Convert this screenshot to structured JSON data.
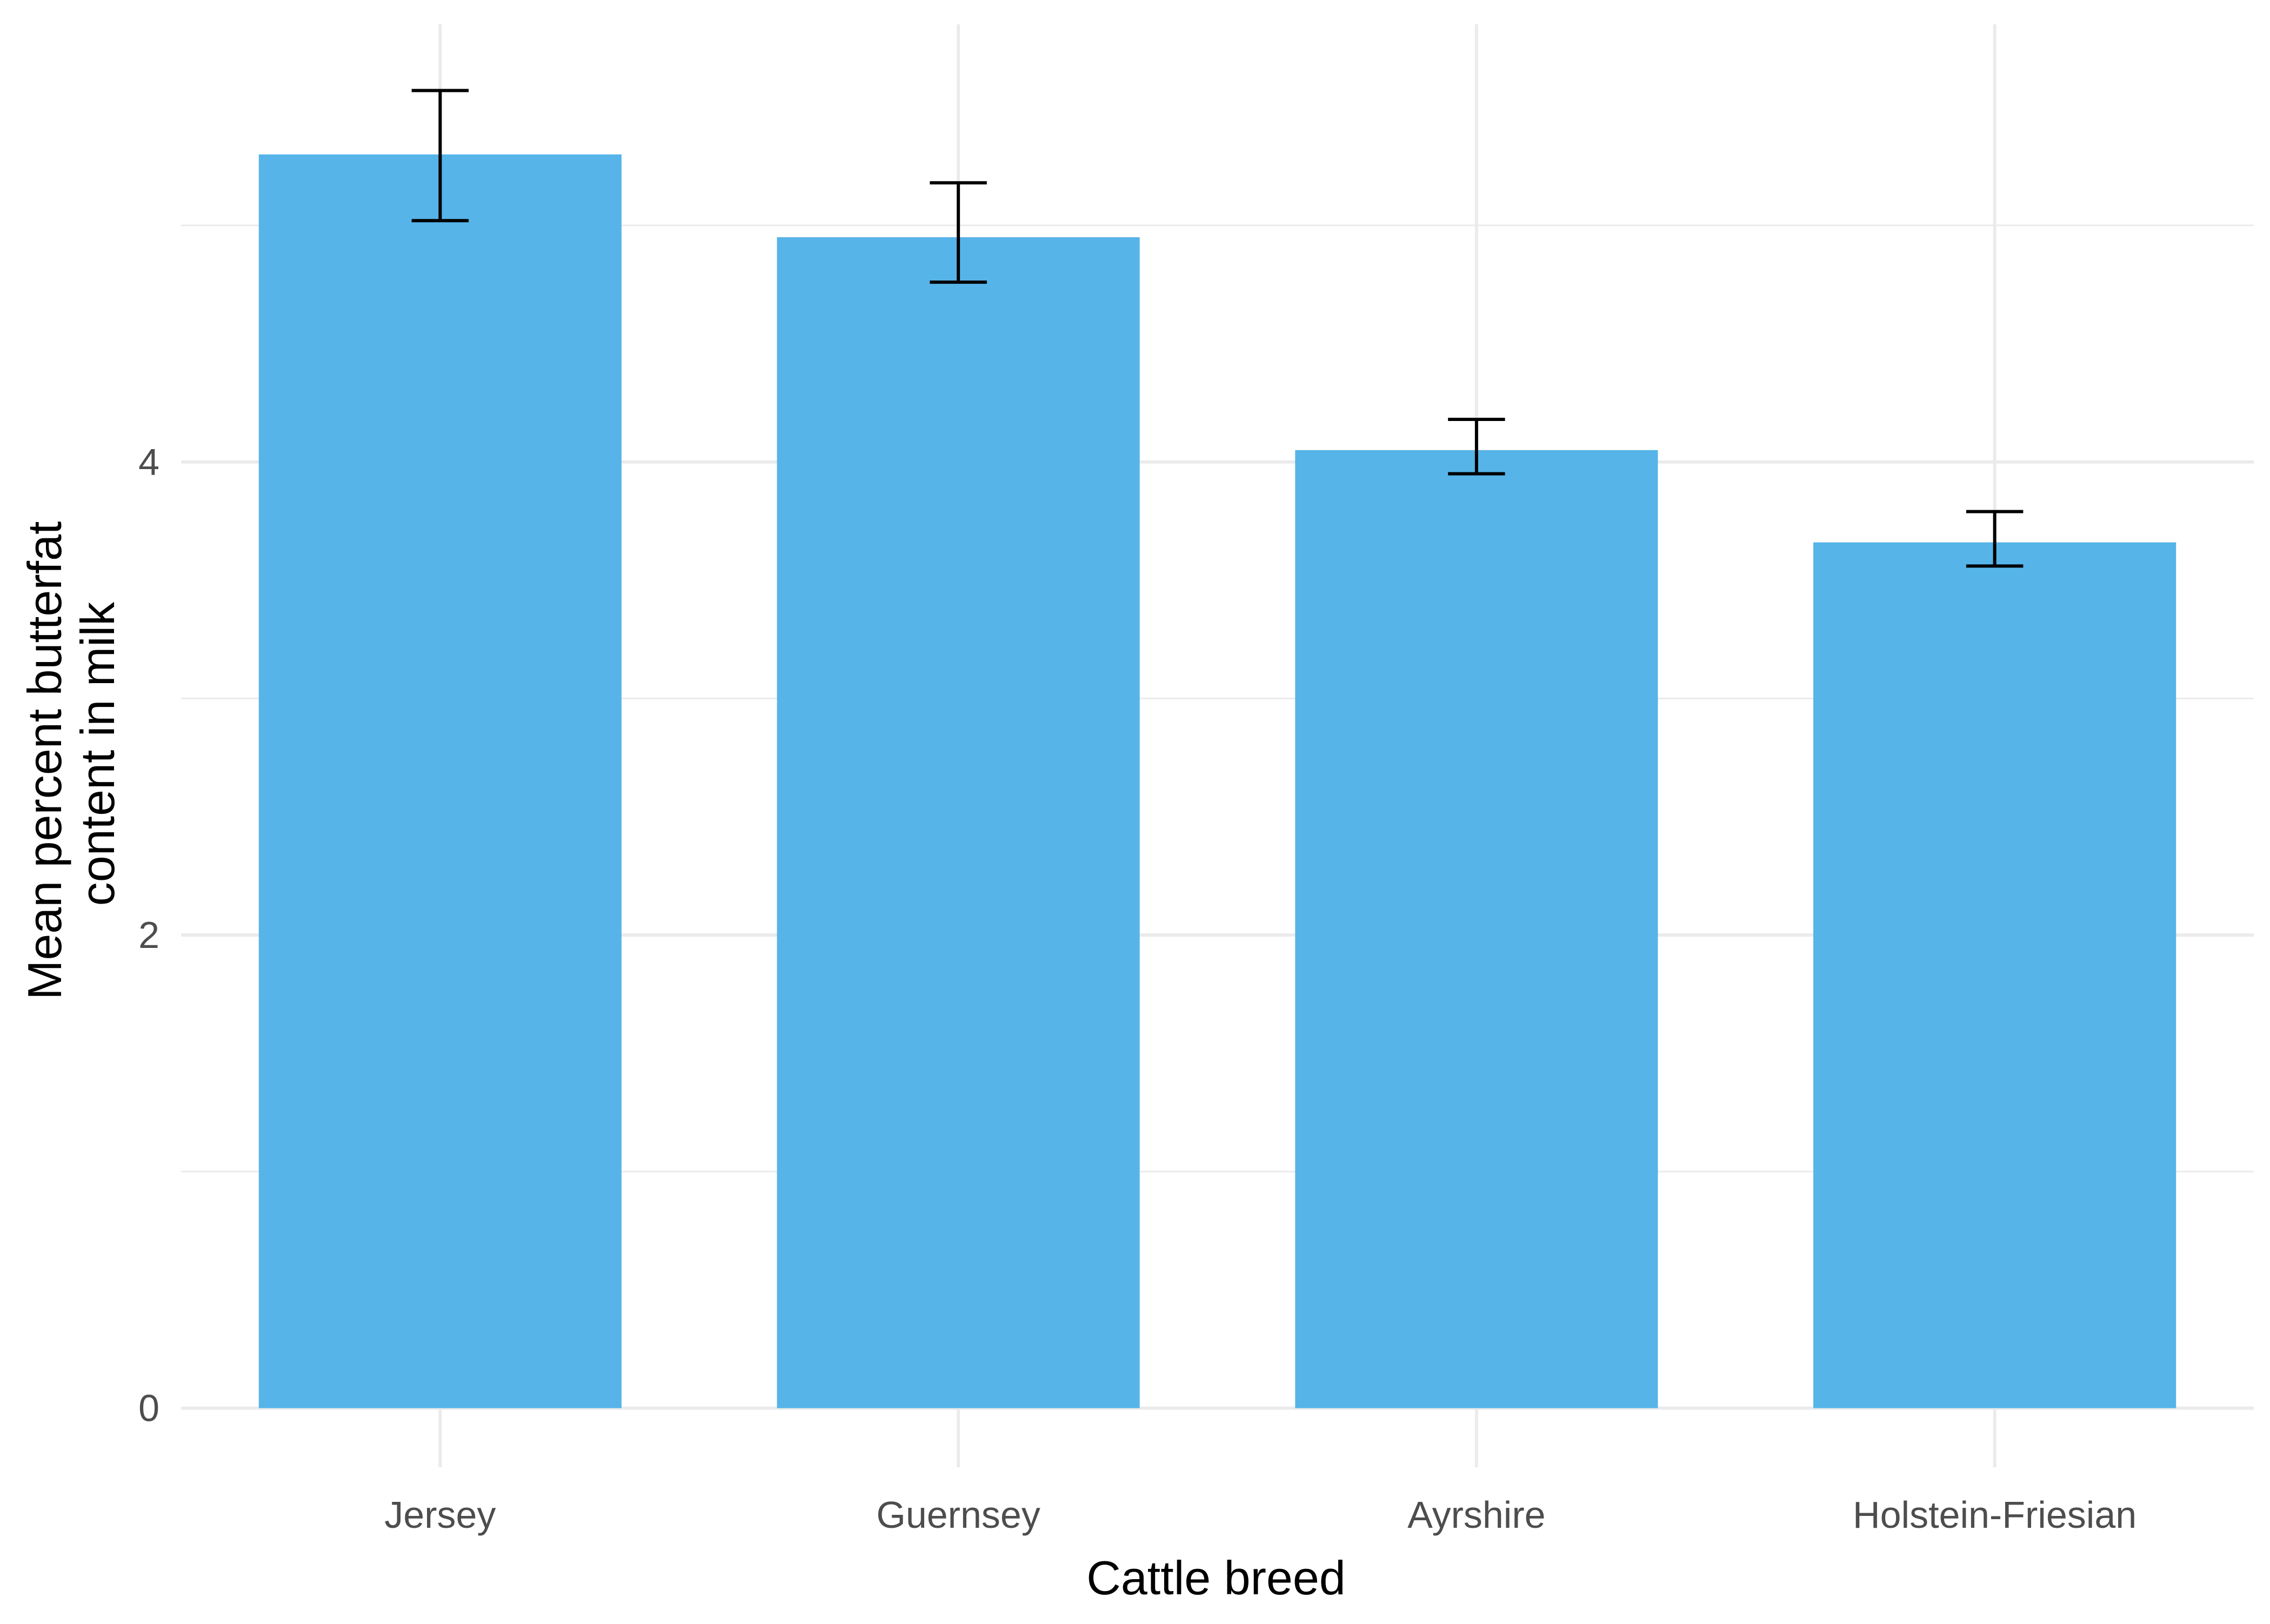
{
  "chart_data": {
    "type": "bar",
    "categories": [
      "Jersey",
      "Guernsey",
      "Ayrshire",
      "Holstein-Friesian"
    ],
    "values": [
      5.3,
      4.95,
      4.05,
      3.66
    ],
    "error_bars": {
      "lower": [
        5.02,
        4.76,
        3.95,
        3.56
      ],
      "upper": [
        5.57,
        5.18,
        4.18,
        3.79
      ]
    },
    "xlabel": "Cattle breed",
    "ylabel": [
      "Mean percent butterfat",
      "content in milk"
    ],
    "ylim": [
      -0.25,
      5.85
    ],
    "y_ticks": [
      0,
      2,
      4
    ],
    "y_ticks_labels": [
      "0",
      "2",
      "4"
    ],
    "y_minor_gridlines": [
      1,
      3,
      5
    ],
    "grid": true,
    "legend": "none",
    "colors": {
      "bar": "#56B4E9",
      "error_bar": "#000000",
      "grid": "#EBEBEB",
      "tick_label": "#4D4D4D",
      "axis_title": "#000000"
    }
  }
}
